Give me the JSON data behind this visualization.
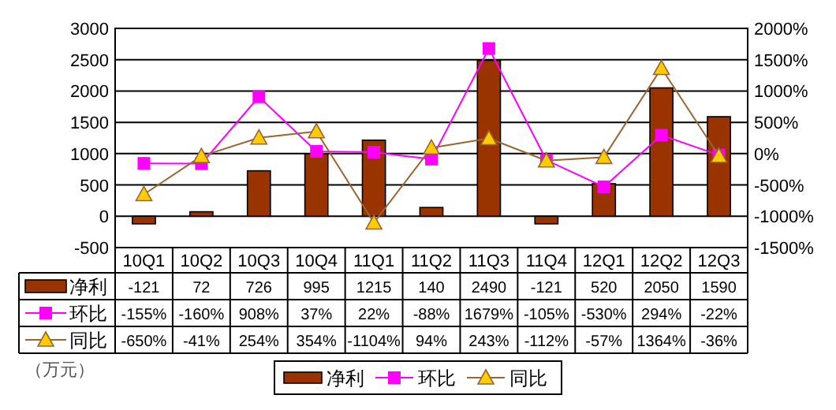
{
  "chart_data": {
    "type": "bar",
    "categories": [
      "10Q1",
      "10Q2",
      "10Q3",
      "10Q4",
      "11Q1",
      "11Q2",
      "11Q3",
      "11Q4",
      "12Q1",
      "12Q2",
      "12Q3"
    ],
    "series": [
      {
        "name": "净利",
        "color": "#993300",
        "values": [
          -121,
          72,
          726,
          995,
          1215,
          140,
          2490,
          -121,
          520,
          2050,
          1590
        ],
        "value_labels": [
          "-121",
          "72",
          "726",
          "995",
          "1215",
          "140",
          "2490",
          "-121",
          "520",
          "2050",
          "1590"
        ]
      },
      {
        "name": "环比",
        "type": "line",
        "axis": "y2",
        "marker": "square",
        "color": "#ff00ff",
        "values": [
          -155,
          -160,
          908,
          37,
          22,
          -88,
          1679,
          -105,
          -530,
          294,
          -22
        ],
        "value_labels": [
          "-155%",
          "-160%",
          "908%",
          "37%",
          "22%",
          "-88%",
          "1679%",
          "-105%",
          "-530%",
          "294%",
          "-22%"
        ]
      },
      {
        "name": "同比",
        "type": "line",
        "axis": "y2",
        "marker": "triangle",
        "color": "#ffcc00",
        "values": [
          -650,
          -41,
          254,
          354,
          -1104,
          94,
          243,
          -112,
          -57,
          1364,
          -36
        ],
        "value_labels": [
          "-650%",
          "-41%",
          "254%",
          "354%",
          "-1104%",
          "94%",
          "243%",
          "-112%",
          "-57%",
          "1364%",
          "-36%"
        ]
      }
    ],
    "ylim": [
      -500,
      3000
    ],
    "yticks": [
      -500,
      0,
      500,
      1000,
      1500,
      2000,
      2500,
      3000
    ],
    "y2lim": [
      -1500,
      2000
    ],
    "y2ticks": [
      {
        "value": -1500,
        "label": "-1500%"
      },
      {
        "value": -1000,
        "label": "-1000%"
      },
      {
        "value": -500,
        "label": "-500%"
      },
      {
        "value": 0,
        "label": "0%"
      },
      {
        "value": 500,
        "label": "500%"
      },
      {
        "value": 1000,
        "label": "1000%"
      },
      {
        "value": 1500,
        "label": "1500%"
      },
      {
        "value": 2000,
        "label": "2000%"
      }
    ],
    "grid": "y",
    "legend": "bottom",
    "annotations": [
      "（万元）"
    ]
  }
}
